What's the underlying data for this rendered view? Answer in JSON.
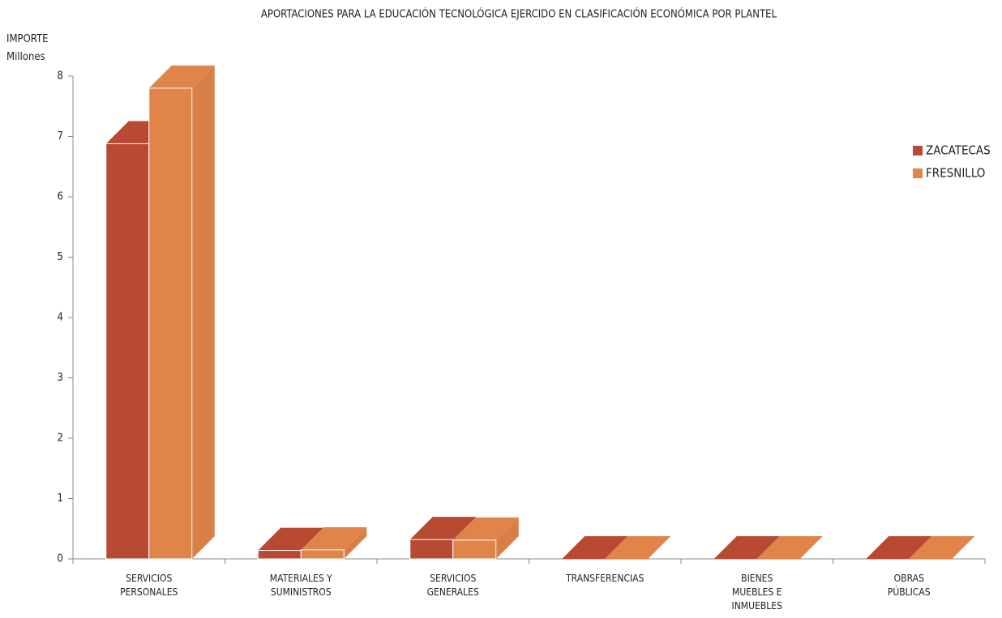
{
  "chart_data": {
    "type": "bar3d",
    "title": "APORTACIONES PARA LA EDUCACIÓN TECNOLÓGICA  EJERCIDO EN CLASIFICACIÓN ECONÓMICA POR PLANTEL",
    "ylabel": "IMPORTE\nMillones",
    "categories": [
      "SERVICIOS\nPERSONALES",
      "MATERIALES Y\nSUMINISTROS",
      "SERVICIOS\nGENERALES",
      "TRANSFERENCIAS",
      "BIENES\nMUEBLES E\nINMUEBLES",
      "OBRAS\nPÚBLICAS"
    ],
    "series": [
      {
        "name": "ZACATECAS",
        "color": "#b84a33",
        "values": [
          6.88,
          0.14,
          0.32,
          0,
          0,
          0
        ]
      },
      {
        "name": "FRESNILLO",
        "color": "#e0844a",
        "values": [
          7.8,
          0.15,
          0.31,
          0,
          0,
          0
        ]
      }
    ],
    "ylim": [
      0,
      8
    ],
    "yticks": [
      0,
      1,
      2,
      3,
      4,
      5,
      6,
      7,
      8
    ],
    "legend": "right"
  }
}
